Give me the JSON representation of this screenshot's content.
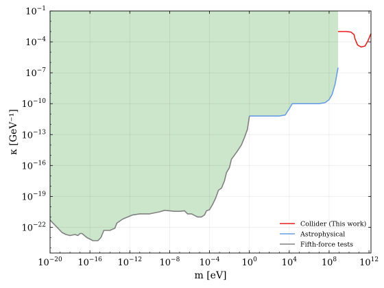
{
  "chart_data": {
    "type": "line",
    "xlabel": "m [eV]",
    "ylabel": "κ [GeV⁻¹]",
    "x_scale": "log",
    "y_scale": "log",
    "xlim_log10": [
      -20,
      12.2
    ],
    "ylim_log10": [
      -24.5,
      -1
    ],
    "x_ticks_log10": [
      -20,
      -16,
      -12,
      -8,
      -4,
      0,
      4,
      8,
      12
    ],
    "y_ticks_log10": [
      -22,
      -19,
      -16,
      -13,
      -10,
      -7,
      -4,
      -1
    ],
    "grid": true,
    "legend_position": "bottom-right",
    "excluded_region": {
      "color": "#cbe6cb",
      "bounded_by": "Fifth-force tests",
      "x_max_log10": 8.9,
      "y_top_log10": -1
    },
    "series": [
      {
        "name": "Collider (This work)",
        "color": "#ee1c1c",
        "points_log10": [
          [
            8.9,
            -3.0
          ],
          [
            9.7,
            -3.0
          ],
          [
            10.2,
            -3.05
          ],
          [
            10.5,
            -3.3
          ],
          [
            10.6,
            -3.7
          ],
          [
            10.85,
            -4.3
          ],
          [
            11.2,
            -4.5
          ],
          [
            11.6,
            -4.4
          ],
          [
            11.9,
            -3.9
          ],
          [
            12.2,
            -3.2
          ]
        ]
      },
      {
        "name": "Astrophysical",
        "color": "#6a9de6",
        "points_log10": [
          [
            0.0,
            -11.2
          ],
          [
            3.0,
            -11.2
          ],
          [
            3.6,
            -11.1
          ],
          [
            4.0,
            -10.5
          ],
          [
            4.3,
            -10.0
          ],
          [
            7.0,
            -10.0
          ],
          [
            7.6,
            -9.9
          ],
          [
            8.0,
            -9.6
          ],
          [
            8.3,
            -9.1
          ],
          [
            8.6,
            -8.1
          ],
          [
            8.9,
            -6.5
          ]
        ]
      },
      {
        "name": "Fifth-force tests",
        "color": "#808080",
        "points_log10": [
          [
            -20.0,
            -21.3
          ],
          [
            -19.6,
            -21.7
          ],
          [
            -19.2,
            -22.1
          ],
          [
            -18.8,
            -22.5
          ],
          [
            -18.4,
            -22.7
          ],
          [
            -18.0,
            -22.8
          ],
          [
            -17.5,
            -22.7
          ],
          [
            -17.2,
            -22.8
          ],
          [
            -17.0,
            -22.6
          ],
          [
            -16.8,
            -22.6
          ],
          [
            -16.3,
            -23.0
          ],
          [
            -15.7,
            -23.3
          ],
          [
            -15.2,
            -23.3
          ],
          [
            -14.9,
            -23.0
          ],
          [
            -14.6,
            -22.3
          ],
          [
            -14.0,
            -22.3
          ],
          [
            -13.5,
            -22.1
          ],
          [
            -13.3,
            -21.6
          ],
          [
            -13.0,
            -21.4
          ],
          [
            -12.7,
            -21.2
          ],
          [
            -12.2,
            -21.0
          ],
          [
            -11.7,
            -20.8
          ],
          [
            -11.0,
            -20.7
          ],
          [
            -10.0,
            -20.7
          ],
          [
            -9.5,
            -20.6
          ],
          [
            -9.0,
            -20.5
          ],
          [
            -8.5,
            -20.35
          ],
          [
            -8.0,
            -20.4
          ],
          [
            -7.5,
            -20.45
          ],
          [
            -7.0,
            -20.45
          ],
          [
            -6.5,
            -20.4
          ],
          [
            -6.2,
            -20.7
          ],
          [
            -5.8,
            -20.7
          ],
          [
            -5.5,
            -20.85
          ],
          [
            -5.2,
            -21.0
          ],
          [
            -4.8,
            -21.0
          ],
          [
            -4.5,
            -20.8
          ],
          [
            -4.3,
            -20.4
          ],
          [
            -4.0,
            -20.3
          ],
          [
            -3.7,
            -19.8
          ],
          [
            -3.4,
            -19.2
          ],
          [
            -3.1,
            -18.4
          ],
          [
            -2.8,
            -18.2
          ],
          [
            -2.5,
            -17.5
          ],
          [
            -2.3,
            -16.7
          ],
          [
            -2.0,
            -16.2
          ],
          [
            -1.8,
            -15.4
          ],
          [
            -1.5,
            -15.0
          ],
          [
            -1.2,
            -14.6
          ],
          [
            -0.8,
            -14.0
          ],
          [
            -0.5,
            -13.3
          ],
          [
            -0.2,
            -12.5
          ],
          [
            0.0,
            -11.2
          ]
        ]
      }
    ]
  }
}
